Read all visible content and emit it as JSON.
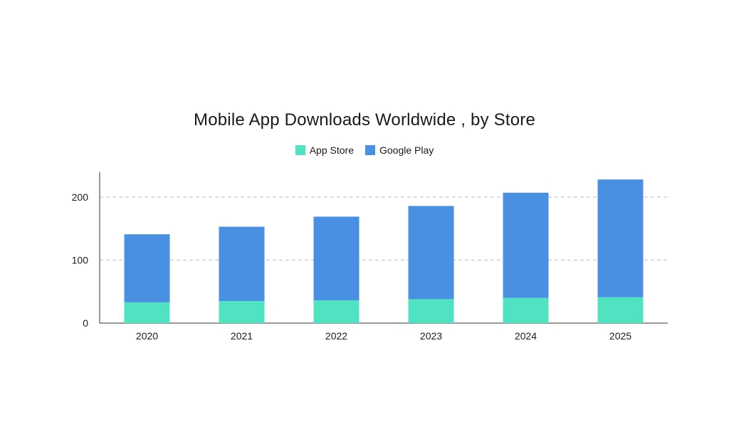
{
  "chart_data": {
    "type": "bar",
    "stacked": true,
    "title": "Mobile App Downloads Worldwide , by Store",
    "xlabel": "",
    "ylabel": "",
    "categories": [
      "2020",
      "2021",
      "2022",
      "2023",
      "2024",
      "2025"
    ],
    "series": [
      {
        "name": "App Store",
        "color": "#50e3c2",
        "values": [
          33,
          35,
          36,
          38,
          40,
          41
        ]
      },
      {
        "name": "Google Play",
        "color": "#4a90e2",
        "values": [
          108,
          118,
          133,
          148,
          167,
          187
        ]
      }
    ],
    "ylim": [
      0,
      240
    ],
    "yticks": [
      "0",
      "100",
      "200"
    ],
    "ytick_values": [
      0,
      100,
      200
    ],
    "grid": "horizontal dashed",
    "legend_position": "top-center"
  }
}
